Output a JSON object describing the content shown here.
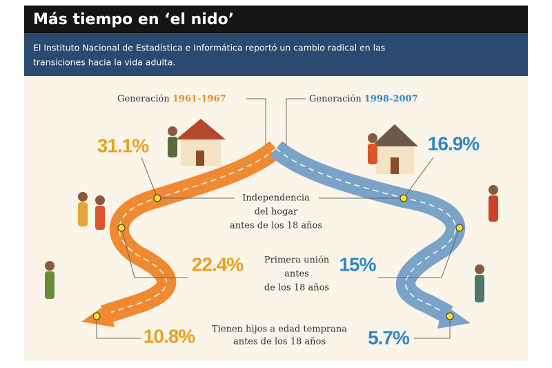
{
  "header": {
    "title": "Más tiempo en ‘el nido’",
    "subtitle": [
      "El Instituto Nacional de Estadística e Informática reportó un cambio radical en las",
      "transiciones hacia la vida adulta."
    ]
  },
  "generations": [
    {
      "label": "Generación",
      "years": "1961-1967"
    },
    {
      "label": "Generación",
      "years": "1998-2007"
    }
  ],
  "indicators": [
    {
      "label": [
        "Independencia",
        "del hogar",
        "antes de los 18 años"
      ],
      "values": [
        "31.1%",
        "16.9%"
      ]
    },
    {
      "label": [
        "Primera unión",
        "antes",
        "de los 18 años"
      ],
      "values": [
        "22.4%",
        "15%"
      ]
    },
    {
      "label": [
        "Tienen hijos a edad temprana",
        "antes de los 18 años"
      ],
      "values": [
        "10.8%",
        "5.7%"
      ]
    }
  ]
}
